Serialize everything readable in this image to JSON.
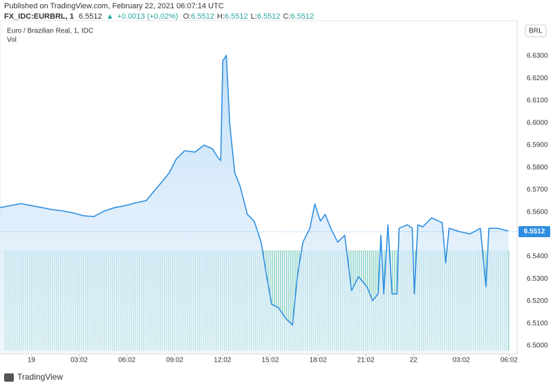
{
  "header": {
    "published": "Published on TradingView.com, February 22, 2021 06:07:14 UTC",
    "symbol": "FX_IDC:EURBRL, 1",
    "last": "6.5512",
    "change": "+0.0013 (+0.02%)",
    "ohlc": [
      {
        "label": "O:",
        "value": "6.5512"
      },
      {
        "label": "H:",
        "value": "6.5512"
      },
      {
        "label": "L:",
        "value": "6.5512"
      },
      {
        "label": "C:",
        "value": "6.5512"
      }
    ]
  },
  "chart_data": {
    "type": "area",
    "title": "Euro / Brazilian Real, 1, IDC",
    "volume_label": "Vol",
    "currency": "BRL",
    "color": "#2f8ee0",
    "grid": false,
    "x": [
      -1.97,
      -1.31,
      -0.66,
      0,
      0.66,
      1.31,
      1.97,
      2.62,
      3.28,
      3.94,
      4.59,
      5.25,
      5.9,
      6.56,
      7.21,
      7.65,
      8.09,
      8.66,
      9.1,
      9.62,
      10.28,
      10.84,
      11.37,
      11.72,
      11.89,
      12.02,
      12.24,
      12.46,
      12.77,
      13.12,
      13.56,
      13.99,
      14.43,
      14.78,
      15.09,
      15.52,
      15.96,
      16.4,
      16.7,
      17.05,
      17.49,
      17.8,
      18.15,
      18.45,
      18.8,
      19.24,
      19.68,
      20.11,
      20.55,
      21.08,
      21.43,
      21.78,
      21.95,
      22.13,
      22.39,
      22.65,
      22.96,
      23.09,
      23.61,
      23.92,
      24.05,
      24.27,
      24.57,
      25.14,
      25.8,
      26.02,
      26.23,
      26.89,
      27.55,
      28.2,
      28.55,
      28.73,
      29.3,
      29.95
    ],
    "values": [
      6.562,
      6.5629,
      6.5638,
      6.5629,
      6.562,
      6.5611,
      6.5605,
      6.5596,
      6.5583,
      6.558,
      6.5605,
      6.562,
      6.5629,
      6.5642,
      6.5651,
      6.5689,
      6.5726,
      6.5776,
      6.5838,
      6.5875,
      6.5869,
      6.59,
      6.5884,
      6.5844,
      6.5831,
      6.6278,
      6.6303,
      6.5993,
      6.5776,
      6.5714,
      6.559,
      6.5559,
      6.5465,
      6.531,
      6.5186,
      6.5171,
      6.5124,
      6.5093,
      6.531,
      6.5465,
      6.5527,
      6.5636,
      6.5559,
      6.559,
      6.5527,
      6.5465,
      6.5496,
      6.5248,
      6.531,
      6.5264,
      6.5202,
      6.5233,
      6.5496,
      6.5233,
      6.5543,
      6.5233,
      6.5233,
      6.5527,
      6.5543,
      6.5527,
      6.5233,
      6.5543,
      6.5533,
      6.5574,
      6.5552,
      6.5372,
      6.5527,
      6.5512,
      6.5502,
      6.5527,
      6.5264,
      6.5527,
      6.5527,
      6.5515
    ],
    "xlim": [
      -1.97,
      30.5
    ],
    "ylim": [
      6.4963,
      6.6458
    ],
    "xticks": [
      {
        "value": 0,
        "label": "19"
      },
      {
        "value": 3,
        "label": "03:02"
      },
      {
        "value": 6,
        "label": "06:02"
      },
      {
        "value": 9,
        "label": "09:02"
      },
      {
        "value": 12,
        "label": "12:02"
      },
      {
        "value": 15,
        "label": "15:02"
      },
      {
        "value": 18,
        "label": "18:02"
      },
      {
        "value": 21,
        "label": "21:02"
      },
      {
        "value": 24,
        "label": "22"
      },
      {
        "value": 27,
        "label": "03:02"
      },
      {
        "value": 30,
        "label": "06:02"
      }
    ],
    "yticks": [
      {
        "value": 6.5,
        "label": "6.5000"
      },
      {
        "value": 6.51,
        "label": "6.5100"
      },
      {
        "value": 6.52,
        "label": "6.5200"
      },
      {
        "value": 6.53,
        "label": "6.5300"
      },
      {
        "value": 6.54,
        "label": "6.5400"
      },
      {
        "value": 6.55,
        "label": "6.5500"
      },
      {
        "value": 6.56,
        "label": "6.5600"
      },
      {
        "value": 6.57,
        "label": "6.5700"
      },
      {
        "value": 6.58,
        "label": "6.5800"
      },
      {
        "value": 6.59,
        "label": "6.5900"
      },
      {
        "value": 6.6,
        "label": "6.6000"
      },
      {
        "value": 6.61,
        "label": "6.6100"
      },
      {
        "value": 6.62,
        "label": "6.6200"
      },
      {
        "value": 6.63,
        "label": "6.6300"
      }
    ],
    "last_price": {
      "value": 6.5512,
      "label": "6.5512"
    },
    "brand": "TradingView"
  }
}
